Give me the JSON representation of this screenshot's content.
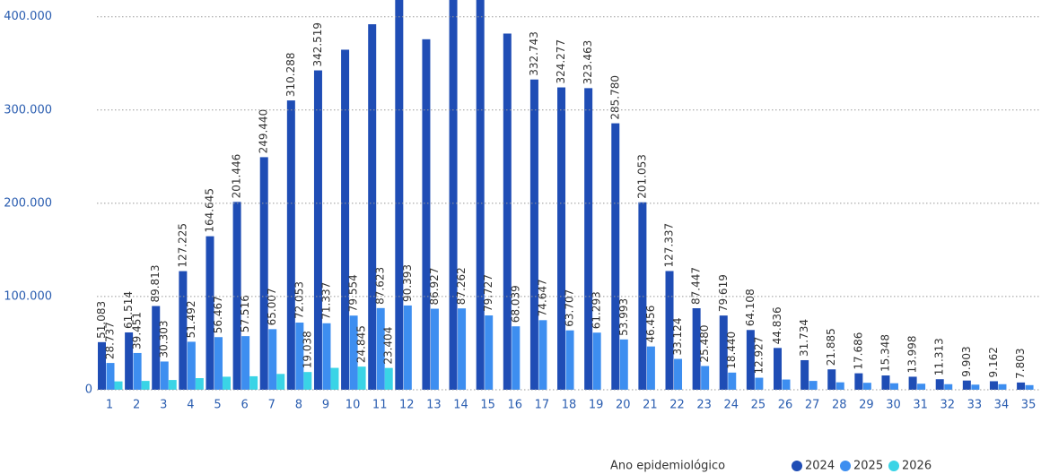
{
  "chart_data": {
    "type": "bar",
    "categories": [
      "1",
      "2",
      "3",
      "4",
      "5",
      "6",
      "7",
      "8",
      "9",
      "10",
      "11",
      "12",
      "13",
      "14",
      "15",
      "16",
      "17",
      "18",
      "19",
      "20",
      "21",
      "22",
      "23",
      "24",
      "25",
      "26",
      "27",
      "28",
      "29",
      "30",
      "31",
      "32",
      "33",
      "34",
      "35"
    ],
    "series": [
      {
        "name": "2024",
        "color": "#1f4db5",
        "values": [
          51083,
          61514,
          89813,
          127225,
          164645,
          201446,
          249440,
          310288,
          342519,
          364700,
          392000,
          430000,
          375900,
          425000,
          421000,
          382000,
          332743,
          324277,
          323463,
          285780,
          201053,
          127337,
          87447,
          79619,
          64108,
          44836,
          31734,
          21885,
          17686,
          15348,
          13998,
          11313,
          9903,
          9162,
          7803
        ],
        "value_labels": [
          "51.083",
          "61.514",
          "89.813",
          "127.225",
          "164.645",
          "201.446",
          "249.440",
          "310.288",
          "342.519",
          null,
          null,
          null,
          null,
          null,
          null,
          null,
          "332.743",
          "324.277",
          "323.463",
          "285.780",
          "201.053",
          "127.337",
          "87.447",
          "79.619",
          "64.108",
          "44.836",
          "31.734",
          "21.885",
          "17.686",
          "15.348",
          "13.998",
          "11.313",
          "9.903",
          "9.162",
          "7.803"
        ]
      },
      {
        "name": "2025",
        "color": "#3d8ef0",
        "values": [
          28737,
          39451,
          30303,
          51492,
          56467,
          57516,
          65007,
          72053,
          71337,
          79554,
          87623,
          90393,
          86927,
          87262,
          79727,
          68039,
          74647,
          63707,
          61293,
          53993,
          46456,
          33124,
          25480,
          18440,
          12927,
          11000,
          9500,
          8000,
          7500,
          7000,
          6500,
          6000,
          5500,
          6000,
          5000
        ],
        "value_labels": [
          "28.737",
          "39.451",
          "30.303",
          "51.492",
          "56.467",
          "57.516",
          "65.007",
          "72.053",
          "71.337",
          "79.554",
          "87.623",
          "90.393",
          "86.927",
          "87.262",
          "79.727",
          "68.039",
          "74.647",
          "63.707",
          "61.293",
          "53.993",
          "46.456",
          "33.124",
          "25.480",
          "18.440",
          "12.927",
          null,
          null,
          null,
          null,
          null,
          null,
          null,
          null,
          null,
          null
        ]
      },
      {
        "name": "2026",
        "color": "#3ad4e6",
        "values": [
          9000,
          9500,
          10500,
          12500,
          14000,
          14500,
          17000,
          19038,
          23500,
          24845,
          23404,
          null,
          null,
          null,
          null,
          null,
          null,
          null,
          null,
          null,
          null,
          null,
          null,
          null,
          null,
          null,
          null,
          null,
          null,
          null,
          null,
          null,
          null,
          null,
          null
        ],
        "value_labels": [
          null,
          null,
          null,
          null,
          null,
          null,
          null,
          "19.038",
          null,
          "24.845",
          "23.404",
          null,
          null,
          null,
          null,
          null,
          null,
          null,
          null,
          null,
          null,
          null,
          null,
          null,
          null,
          null,
          null,
          null,
          null,
          null,
          null,
          null,
          null,
          null,
          null
        ]
      }
    ],
    "ylim": [
      0,
      418000
    ],
    "yticks": [
      0,
      {
        "value": 100000,
        "label": "100.000"
      },
      {
        "value": 200000,
        "label": "200.000"
      },
      {
        "value": 300000,
        "label": "300.000"
      },
      {
        "value": 400000,
        "label": "400.000"
      }
    ],
    "grid": true,
    "legend_title": "Ano epidemiológico",
    "legend": "bottom-right"
  }
}
